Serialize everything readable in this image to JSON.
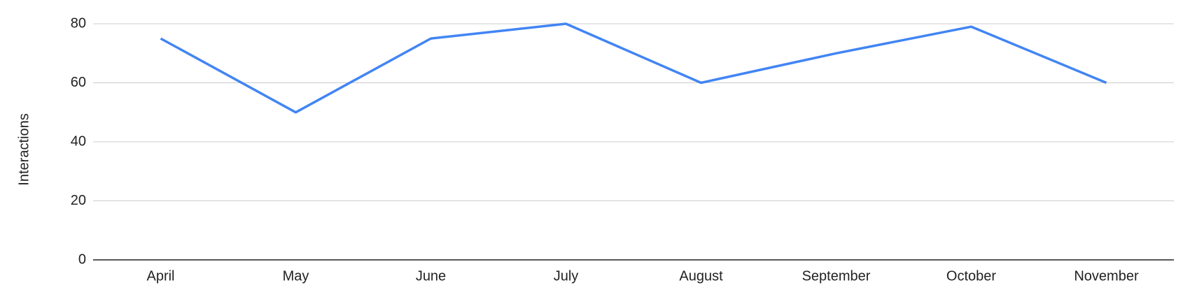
{
  "chart_data": {
    "type": "line",
    "y_label": "Interactions",
    "categories": [
      "April",
      "May",
      "June",
      "July",
      "August",
      "September",
      "October",
      "November"
    ],
    "series": [
      {
        "name": "Interactions",
        "color": "#4285f4",
        "values": [
          75,
          50,
          75,
          80,
          60,
          70,
          79,
          60
        ]
      }
    ],
    "ylim": [
      0,
      80
    ],
    "yticks": [
      0,
      20,
      40,
      60,
      80
    ],
    "grid": true
  }
}
